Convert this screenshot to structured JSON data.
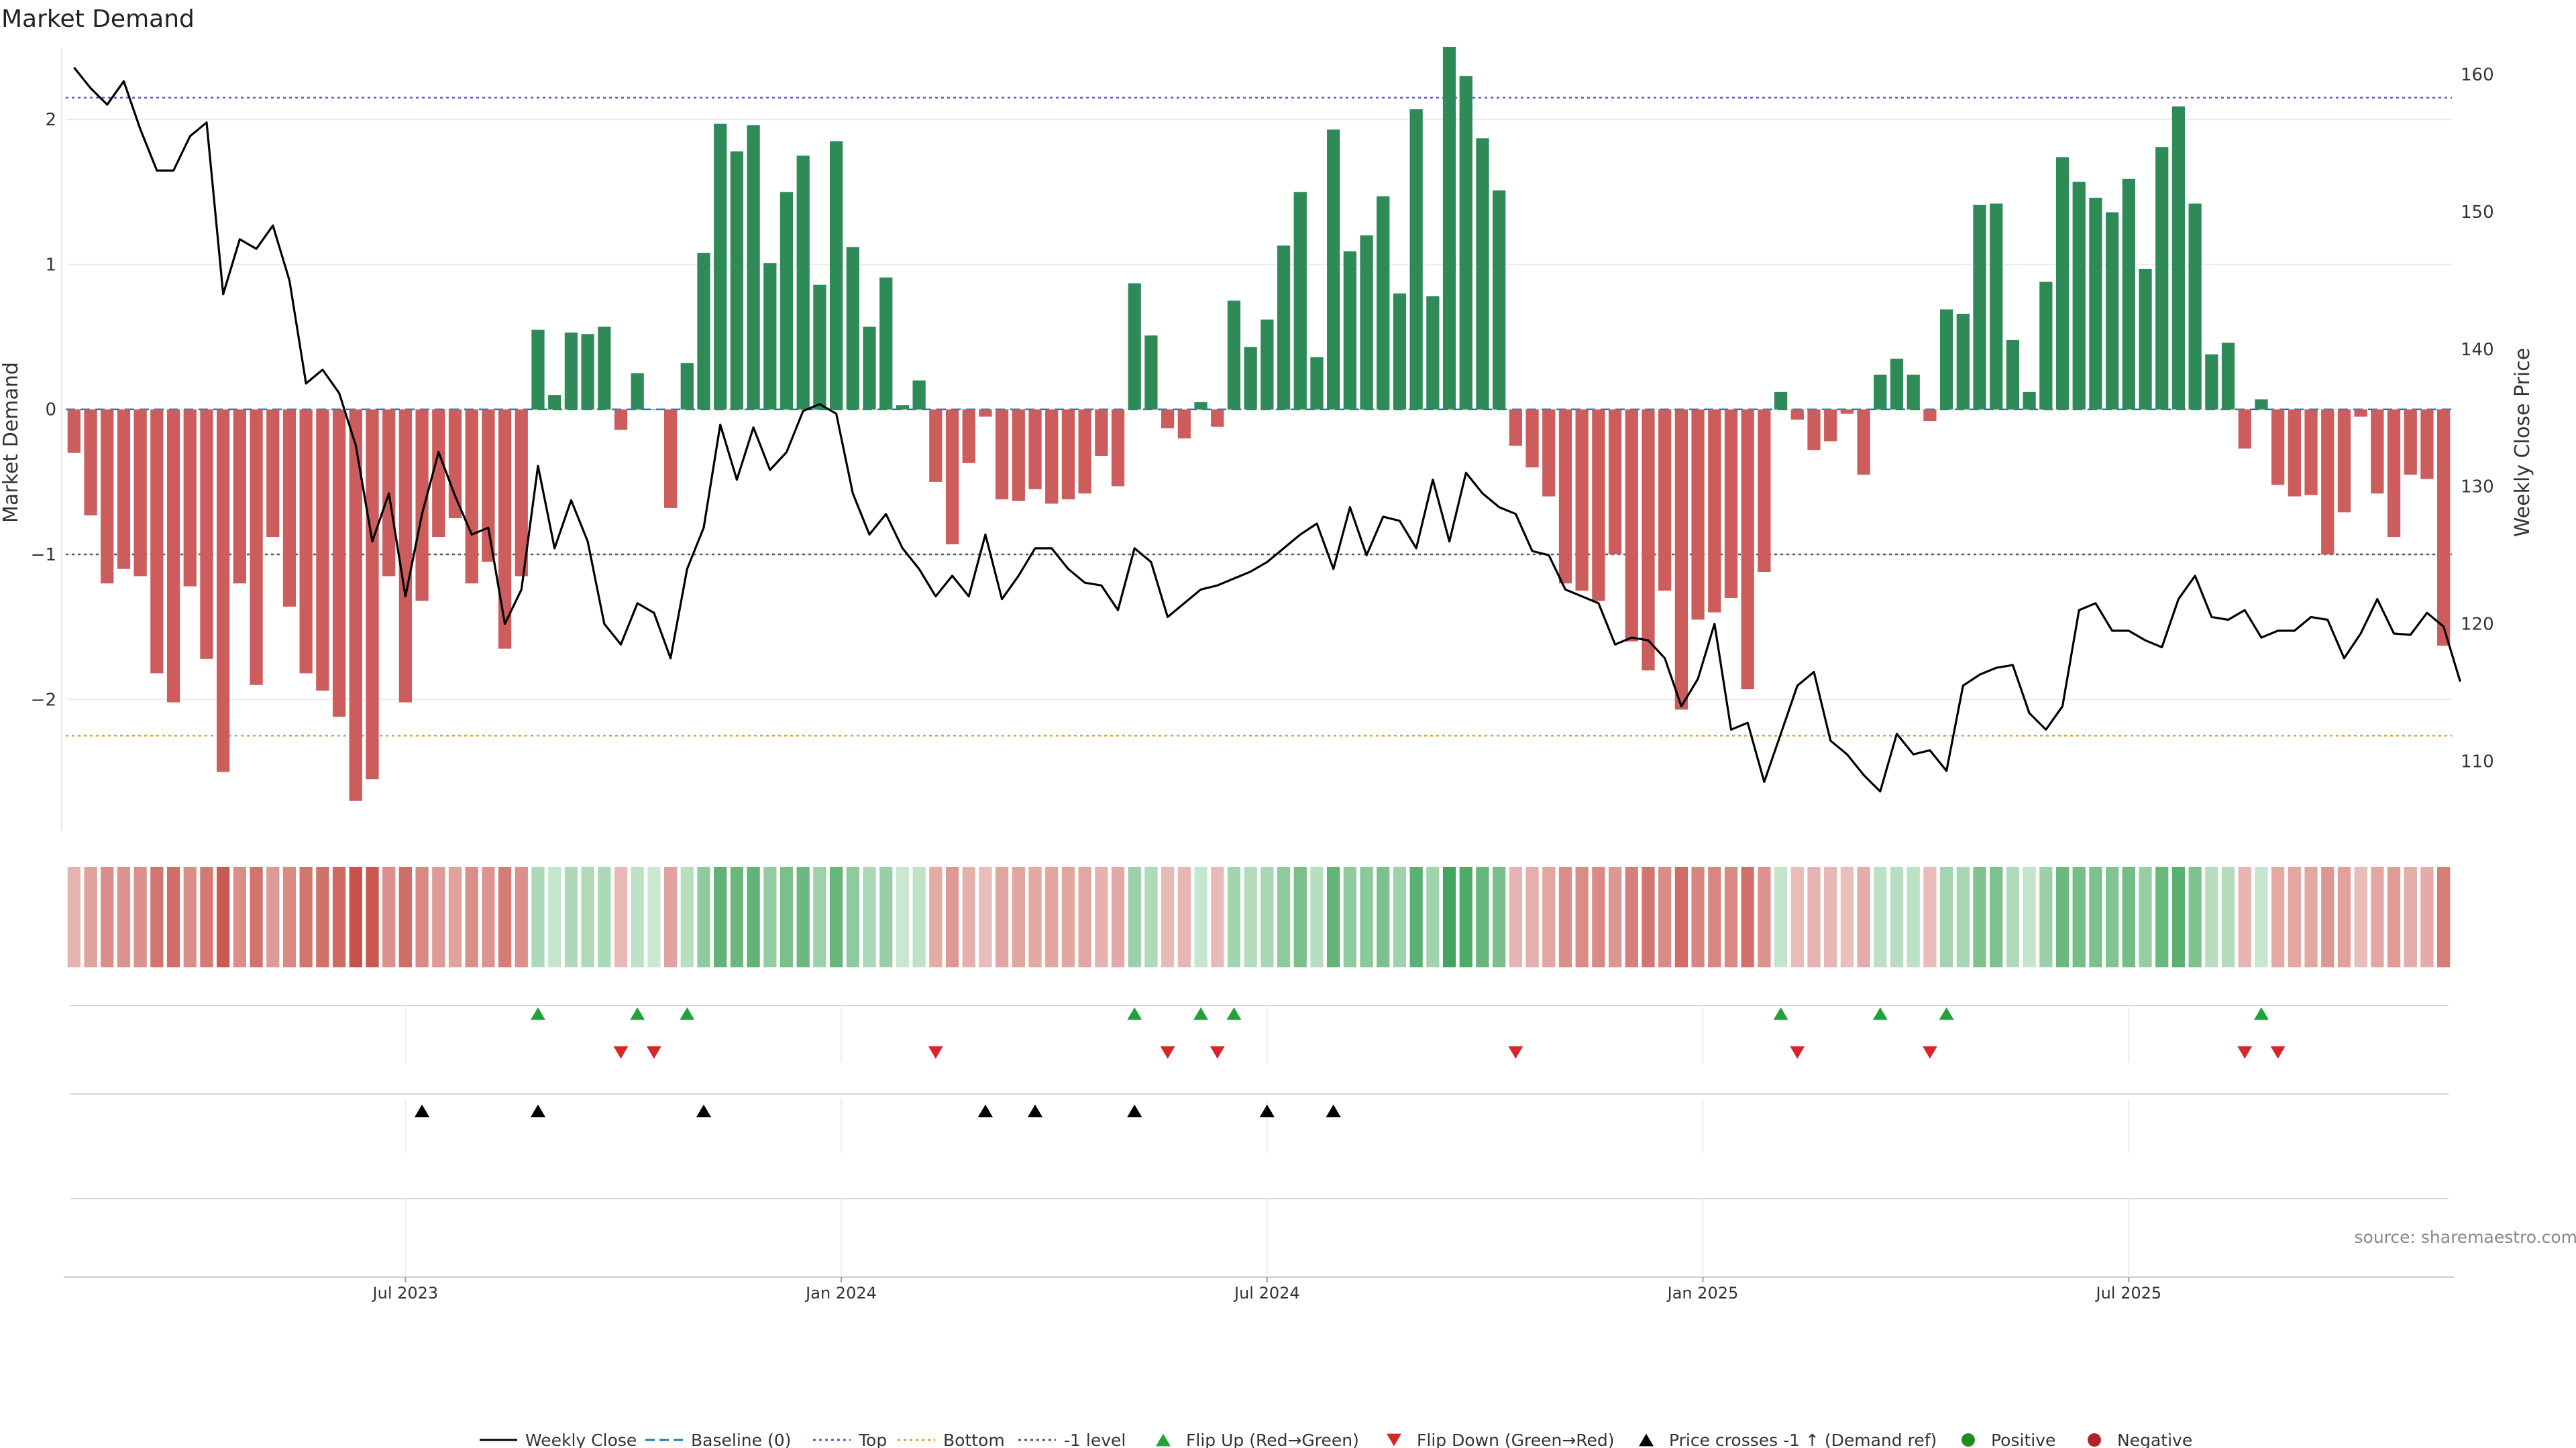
{
  "chart_data": {
    "type": "bar",
    "title": "Market Demand",
    "ylabel": "Market Demand",
    "y2label": "Weekly Close Price",
    "ylim": [
      -2.9,
      2.5
    ],
    "y2lim": [
      105,
      162
    ],
    "yticks": [
      "2",
      "1",
      "0",
      "−1",
      "−2"
    ],
    "yticks_values": [
      2,
      1,
      0,
      -1,
      -2
    ],
    "y2ticks": [
      "160",
      "150",
      "140",
      "130",
      "120",
      "110"
    ],
    "y2ticks_values": [
      160,
      150,
      140,
      130,
      120,
      110
    ],
    "xticks": [
      "Jul 2023",
      "Jan 2024",
      "Jul 2024",
      "Jan 2025",
      "Jul 2025"
    ],
    "xticks_week": [
      20.5,
      46.8,
      72.5,
      98.8,
      124.5
    ],
    "ref_lines": {
      "top": 2.15,
      "bottom": -2.25,
      "minus_one": -1,
      "baseline": 0
    },
    "colors": {
      "positive": "#2e8b57",
      "negative": "#cd5c5c",
      "price": "#000000",
      "top_line": "#5b5bd6",
      "bottom_line": "#e69b2e",
      "minus_one_line": "#555555",
      "baseline_line": "#1f77b4",
      "flip_up": "#22a03a",
      "flip_down": "#d62728",
      "cross": "#000000",
      "positive_dot": "#228b22",
      "negative_dot": "#b22222"
    },
    "demand": [
      -0.3,
      -0.73,
      -1.2,
      -1.1,
      -1.15,
      -1.82,
      -2.02,
      -1.22,
      -1.72,
      -2.5,
      -1.2,
      -1.9,
      -0.88,
      -1.36,
      -1.82,
      -1.94,
      -2.12,
      -2.7,
      -2.55,
      -1.15,
      -2.02,
      -1.32,
      -0.88,
      -0.75,
      -1.2,
      -1.05,
      -1.65,
      -1.15,
      0.55,
      0.1,
      0.53,
      0.52,
      0.57,
      -0.14,
      0.25,
      0.0,
      -0.68,
      0.32,
      1.08,
      1.97,
      1.78,
      1.96,
      1.01,
      1.5,
      1.75,
      0.86,
      1.85,
      1.12,
      0.57,
      0.91,
      0.03,
      0.2,
      -0.5,
      -0.93,
      -0.37,
      -0.05,
      -0.62,
      -0.63,
      -0.55,
      -0.65,
      -0.62,
      -0.58,
      -0.32,
      -0.53,
      0.87,
      0.51,
      -0.13,
      -0.2,
      0.05,
      -0.12,
      0.75,
      0.43,
      0.62,
      1.13,
      1.5,
      0.36,
      1.93,
      1.09,
      1.2,
      1.47,
      0.8,
      2.07,
      0.78,
      2.5,
      2.3,
      1.87,
      1.51,
      -0.25,
      -0.4,
      -0.6,
      -1.2,
      -1.25,
      -1.32,
      -1.0,
      -1.6,
      -1.8,
      -1.25,
      -2.07,
      -1.45,
      -1.4,
      -1.3,
      -1.93,
      -1.12,
      0.12,
      -0.07,
      -0.28,
      -0.22,
      -0.03,
      -0.45,
      0.24,
      0.35,
      0.24,
      -0.08,
      0.69,
      0.66,
      1.41,
      1.42,
      0.48,
      0.12,
      0.88,
      1.74,
      1.57,
      1.46,
      1.36,
      1.59,
      0.97,
      1.81,
      2.09,
      1.42,
      0.38,
      0.46,
      -0.27,
      0.07,
      -0.52,
      -0.6,
      -0.59,
      -1.0,
      -0.71,
      -0.05,
      -0.58,
      -0.88,
      -0.45,
      -0.48,
      -1.63
    ],
    "price": [
      160.5,
      159.0,
      157.8,
      159.5,
      156.0,
      153.0,
      153.0,
      155.5,
      156.5,
      144.0,
      148.0,
      147.3,
      149.0,
      145.0,
      137.5,
      138.5,
      136.8,
      133.0,
      126.0,
      129.5,
      122.0,
      128.0,
      132.5,
      129.3,
      126.5,
      127.0,
      120.0,
      122.5,
      131.5,
      125.5,
      129.0,
      126.0,
      120.0,
      118.5,
      121.5,
      120.8,
      117.5,
      124.0,
      127.0,
      134.5,
      130.5,
      134.3,
      131.2,
      132.5,
      135.5,
      136.0,
      135.3,
      129.5,
      126.5,
      128.0,
      125.5,
      124.0,
      122.0,
      123.5,
      122.0,
      126.5,
      121.8,
      123.5,
      125.5,
      125.5,
      124.0,
      123.0,
      122.8,
      121.0,
      125.5,
      124.5,
      120.5,
      121.5,
      122.5,
      122.8,
      123.3,
      123.8,
      124.5,
      125.5,
      126.5,
      127.3,
      124.0,
      128.5,
      125.0,
      127.8,
      127.5,
      125.5,
      130.5,
      126.0,
      131.0,
      129.5,
      128.5,
      128.0,
      125.3,
      125.0,
      122.5,
      122.0,
      121.5,
      118.5,
      119.0,
      118.8,
      117.5,
      114.0,
      116.0,
      120.0,
      112.3,
      112.8,
      108.5,
      112.0,
      115.5,
      116.5,
      111.5,
      110.5,
      109.0,
      107.8,
      112.0,
      110.5,
      110.8,
      109.3,
      115.5,
      116.3,
      116.8,
      117.0,
      113.5,
      112.3,
      114.0,
      121.0,
      121.5,
      119.5,
      119.5,
      118.8,
      118.3,
      121.8,
      123.5,
      120.5,
      120.3,
      121.0,
      119.0,
      119.5,
      119.5,
      120.5,
      120.3,
      117.5,
      119.3,
      121.8,
      119.3,
      119.2,
      120.8,
      119.8,
      115.8
    ],
    "flip_up_weeks": [
      28,
      34,
      37,
      64,
      68,
      70,
      103,
      109,
      113,
      132
    ],
    "flip_down_weeks": [
      33,
      35,
      52,
      66,
      69,
      87,
      104,
      112,
      131,
      133
    ],
    "cross_weeks": [
      21,
      28,
      38,
      55,
      58,
      64,
      72,
      76
    ],
    "legend": [
      {
        "label": "Weekly Close",
        "kind": "line",
        "style": "solid",
        "color": "#000000"
      },
      {
        "label": "Baseline (0)",
        "kind": "line",
        "style": "dash",
        "color": "#1f77b4"
      },
      {
        "label": "Top",
        "kind": "line",
        "style": "dot",
        "color": "#5b5bd6"
      },
      {
        "label": "Bottom",
        "kind": "line",
        "style": "dot",
        "color": "#e69b2e"
      },
      {
        "label": "-1 level",
        "kind": "line",
        "style": "dot",
        "color": "#555555"
      },
      {
        "label": "Flip Up (Red→Green)",
        "kind": "tri-up",
        "color": "#22a03a"
      },
      {
        "label": "Flip Down (Green→Red)",
        "kind": "tri-down",
        "color": "#d62728"
      },
      {
        "label": "Price crosses -1 ↑ (Demand ref)",
        "kind": "tri-up",
        "color": "#000000"
      },
      {
        "label": "Positive",
        "kind": "dot",
        "color": "#228b22"
      },
      {
        "label": "Negative",
        "kind": "dot",
        "color": "#b22222"
      }
    ],
    "source": "source: sharemaestro.com"
  }
}
